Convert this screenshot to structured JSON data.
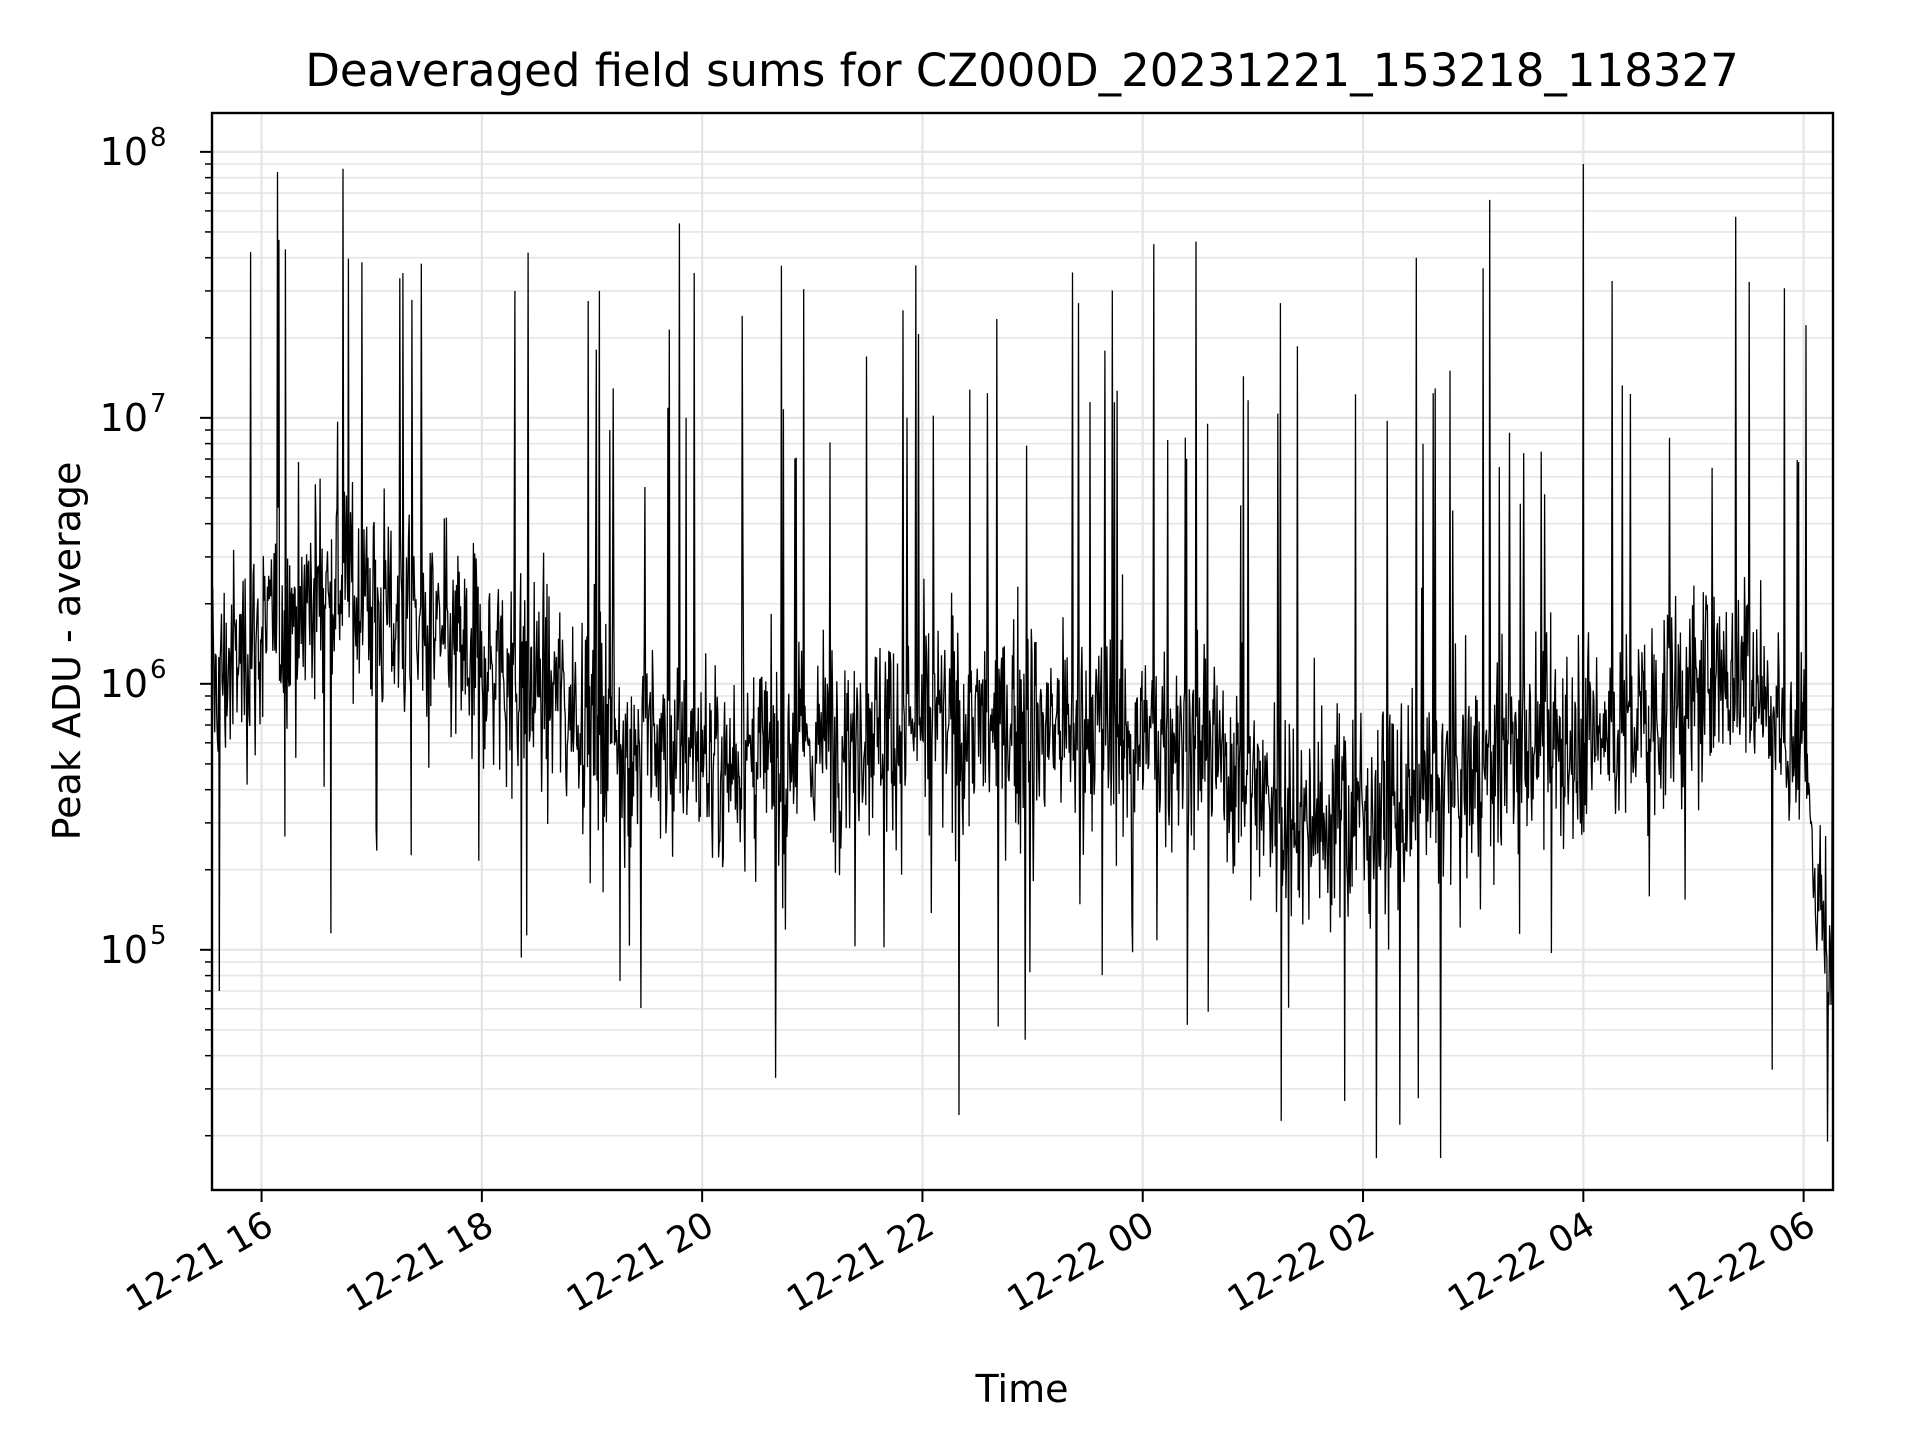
{
  "chart_data": {
    "type": "line",
    "title": "Deaveraged field sums for CZ000D_20231221_153218_118327",
    "xlabel": "Time",
    "ylabel": "Peak ADU - average",
    "x_range": [
      "2023-12-21 15:33",
      "2023-12-22 06:16"
    ],
    "y_scale": "log",
    "ylim": [
      12500,
      140000000
    ],
    "grid": true,
    "line_color": "#000000",
    "grid_color": "#e5e5e5",
    "x_ticks": [
      {
        "value": "2023-12-21 16:00",
        "label": "12-21 16"
      },
      {
        "value": "2023-12-21 18:00",
        "label": "12-21 18"
      },
      {
        "value": "2023-12-21 20:00",
        "label": "12-21 20"
      },
      {
        "value": "2023-12-21 22:00",
        "label": "12-21 22"
      },
      {
        "value": "2023-12-22 00:00",
        "label": "12-22 00"
      },
      {
        "value": "2023-12-22 02:00",
        "label": "12-22 02"
      },
      {
        "value": "2023-12-22 04:00",
        "label": "12-22 04"
      },
      {
        "value": "2023-12-22 06:00",
        "label": "12-22 06"
      }
    ],
    "y_ticks": [
      {
        "value": 100000,
        "base": "10",
        "exp": "5"
      },
      {
        "value": 1000000,
        "base": "10",
        "exp": "6"
      },
      {
        "value": 10000000,
        "base": "10",
        "exp": "7"
      },
      {
        "value": 100000000,
        "base": "10",
        "exp": "8"
      }
    ],
    "series": [
      {
        "description": "dense noisy series; representative envelope samples (time, typical value)",
        "trend": [
          [
            "2023-12-21 15:33",
            1000000
          ],
          [
            "2023-12-21 16:00",
            1500000
          ],
          [
            "2023-12-21 16:40",
            2500000
          ],
          [
            "2023-12-21 17:30",
            1500000
          ],
          [
            "2023-12-21 18:30",
            1000000
          ],
          [
            "2023-12-21 19:30",
            600000
          ],
          [
            "2023-12-21 20:30",
            500000
          ],
          [
            "2023-12-21 21:30",
            700000
          ],
          [
            "2023-12-21 23:00",
            700000
          ],
          [
            "2023-12-22 00:30",
            600000
          ],
          [
            "2023-12-22 01:30",
            300000
          ],
          [
            "2023-12-22 02:30",
            350000
          ],
          [
            "2023-12-22 03:30",
            600000
          ],
          [
            "2023-12-22 04:30",
            700000
          ],
          [
            "2023-12-22 05:30",
            1200000
          ],
          [
            "2023-12-22 06:00",
            500000
          ],
          [
            "2023-12-22 06:16",
            60000
          ]
        ],
        "peaks": [
          [
            "2023-12-21 15:54",
            42000000
          ],
          [
            "2023-12-21 16:13",
            43000000
          ],
          [
            "2023-12-21 17:17",
            35000000
          ],
          [
            "2023-12-21 17:27",
            38000000
          ],
          [
            "2023-12-21 18:18",
            30000000
          ],
          [
            "2023-12-21 19:04",
            30000000
          ],
          [
            "2023-12-21 23:25",
            27000000
          ],
          [
            "2023-12-22 00:06",
            45000000
          ],
          [
            "2023-12-22 00:29",
            46000000
          ],
          [
            "2023-12-22 01:15",
            27000000
          ],
          [
            "2023-12-22 02:29",
            40000000
          ],
          [
            "2023-12-22 03:09",
            66000000
          ],
          [
            "2023-12-22 04:00",
            90000000
          ],
          [
            "2023-12-22 05:23",
            57000000
          ]
        ],
        "troughs": [
          [
            "2023-12-21 15:37",
            70000
          ],
          [
            "2023-12-21 20:40",
            33000
          ],
          [
            "2023-12-22 01:50",
            27000
          ],
          [
            "2023-12-22 02:20",
            22000
          ],
          [
            "2023-12-22 06:13",
            19000
          ]
        ]
      }
    ]
  }
}
